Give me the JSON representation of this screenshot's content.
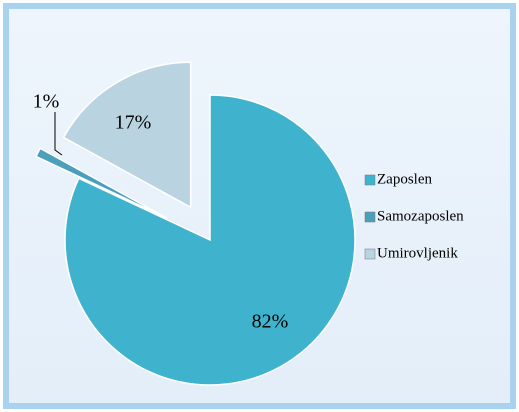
{
  "chart_data": {
    "type": "pie",
    "categories": [
      "Zaposlen",
      "Samozaposlen",
      "Umirovljenik"
    ],
    "values": [
      82,
      1,
      17
    ],
    "value_labels": [
      "82%",
      "1%",
      "17%"
    ],
    "colors": [
      "#3fb3cd",
      "#4a9fbb",
      "#b9d3e1"
    ],
    "legend": "right"
  }
}
